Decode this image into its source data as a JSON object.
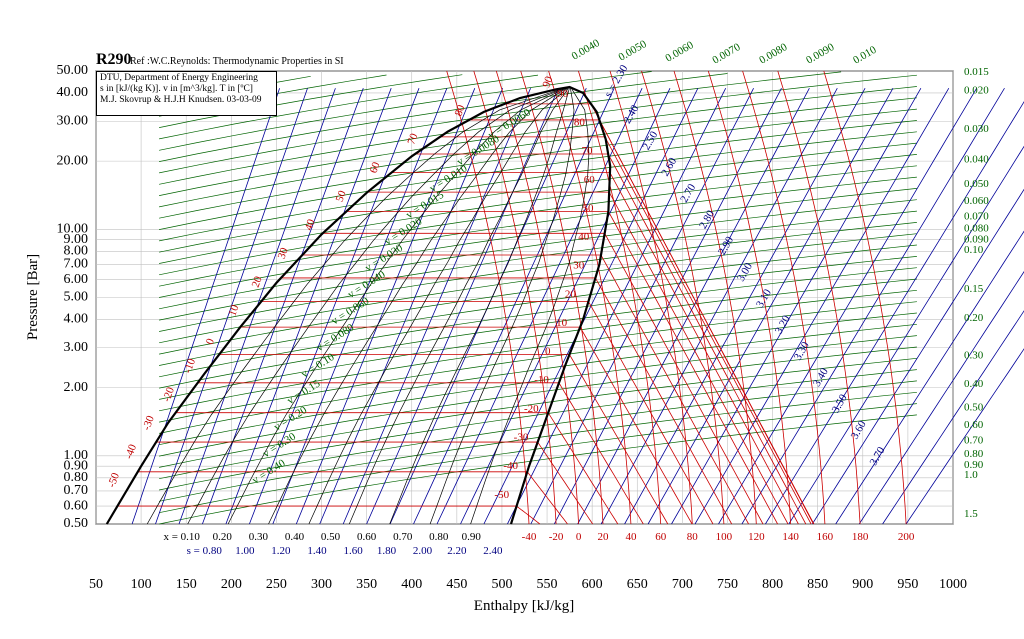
{
  "chart_data": {
    "type": "line",
    "title": "R290",
    "subtitle": "Ref :W.C.Reynolds: Thermodynamic Properties in SI",
    "info": [
      "DTU, Department of Energy Engineering",
      "s in [kJ/(kg K)]. v in [m^3/kg]. T in [ºC]",
      "M.J. Skovrup & H.J.H Knudsen. 03-03-09"
    ],
    "xlabel": "Enthalpy [kJ/kg]",
    "ylabel": "Pressure [Bar]",
    "xlim": [
      50,
      1000
    ],
    "ylim": [
      0.5,
      50
    ],
    "yscale": "log",
    "grid": true,
    "x_ticks": [
      50,
      100,
      150,
      200,
      250,
      300,
      350,
      400,
      450,
      500,
      550,
      600,
      650,
      700,
      750,
      800,
      850,
      900,
      950,
      1000
    ],
    "y_ticks": [
      "0.50",
      "0.60",
      "0.70",
      "0.80",
      "0.90",
      "1.00",
      "2.00",
      "3.00",
      "4.00",
      "5.00",
      "6.00",
      "7.00",
      "8.00",
      "9.00",
      "10.00",
      "20.00",
      "30.00",
      "40.00",
      "50.00"
    ],
    "y_tick_values": [
      0.5,
      0.6,
      0.7,
      0.8,
      0.9,
      1,
      2,
      3,
      4,
      5,
      6,
      7,
      8,
      9,
      10,
      20,
      30,
      40,
      50
    ],
    "saturation_liquid": {
      "h": [
        62,
        100,
        130,
        170,
        210,
        250,
        300,
        350,
        400,
        440,
        480,
        520,
        560,
        575
      ],
      "p": [
        0.5,
        0.9,
        1.4,
        2.3,
        3.7,
        5.8,
        9.5,
        14.5,
        21,
        27,
        33,
        38,
        41.5,
        42.5
      ]
    },
    "saturation_vapor": {
      "h": [
        575,
        590,
        605,
        615,
        620,
        618,
        608,
        590,
        570,
        550,
        530,
        510
      ],
      "p": [
        42.5,
        40,
        33,
        25,
        19,
        12,
        7,
        4,
        2.5,
        1.5,
        0.9,
        0.5
      ]
    },
    "isotherm_labels_sat_liquid": [
      "-50",
      "-40",
      "-30",
      "-20",
      "-10",
      "0",
      "10",
      "20",
      "30",
      "40",
      "50",
      "60",
      "70",
      "80",
      "90"
    ],
    "isotherm_labels_vapor": [
      "90",
      "80",
      "70",
      "60",
      "50",
      "40",
      "30",
      "20",
      "10",
      "0",
      "-10",
      "-20",
      "-30",
      "-40",
      "-50"
    ],
    "temperature_bottom_labels": [
      "-40",
      "-20",
      "0",
      "20",
      "40",
      "60",
      "80",
      "100",
      "120",
      "140",
      "160",
      "180",
      "200"
    ],
    "temperature_bottom_h": [
      530,
      560,
      585,
      612,
      643,
      676,
      711,
      746,
      782,
      820,
      858,
      897,
      948
    ],
    "quality_labels": [
      "x = 0.10",
      "0.20",
      "0.30",
      "0.40",
      "0.50",
      "0.60",
      "0.70",
      "0.80",
      "0.90"
    ],
    "quality_h": [
      145,
      190,
      230,
      270,
      310,
      350,
      390,
      430,
      466
    ],
    "entropy_labels_liquid": [
      "s = 0.80",
      "1.00",
      "1.20",
      "1.40",
      "1.60",
      "1.80",
      "2.00",
      "2.20",
      "2.40"
    ],
    "entropy_h": [
      170,
      215,
      255,
      295,
      335,
      372,
      412,
      450,
      490
    ],
    "entropy_labels_vapor": [
      "s = 2.30",
      "2.40",
      "2.50",
      "2.60",
      "2.70",
      "2.80",
      "2.90",
      "3.00",
      "3.10",
      "3.20",
      "3.30",
      "3.40",
      "3.50",
      "3.60",
      "3.70"
    ],
    "specific_volume_labels_right": [
      "0.015",
      "0.020",
      "0.030",
      "0.040",
      "0.050",
      "0.060",
      "0.070",
      "0.080",
      "0.090",
      "0.10",
      "0.15",
      "0.20",
      "0.30",
      "0.40",
      "0.50",
      "0.60",
      "0.70",
      "0.80",
      "0.90",
      "1.0",
      "1.5"
    ],
    "specific_volume_p_right": [
      50,
      41.5,
      28,
      20.5,
      16,
      13.5,
      11.5,
      10.2,
      9.1,
      8.2,
      5.5,
      4.1,
      2.8,
      2.1,
      1.65,
      1.38,
      1.18,
      1.03,
      0.92,
      0.83,
      0.56
    ],
    "specific_volume_labels_top": [
      "0.0040",
      "0.0050",
      "0.0060",
      "0.0070",
      "0.0080",
      "0.0090",
      "0.010"
    ],
    "specific_volume_labels_in_dome": [
      "v = 0.0060",
      "v = 0.0080",
      "v = 0.010",
      "v = 0.015",
      "v = 0.020",
      "v = 0.030",
      "v = 0.040",
      "v = 0.060",
      "v = 0.080",
      "v = 0.10",
      "v = 0.15",
      "v = 0.20",
      "v = 0.30",
      "v = 0.40"
    ],
    "colors": {
      "isotherm": "#cc0000",
      "isentrope": "#000099",
      "isochore": "#006400",
      "quality": "#000000",
      "grid": "#c0c0c0"
    }
  }
}
